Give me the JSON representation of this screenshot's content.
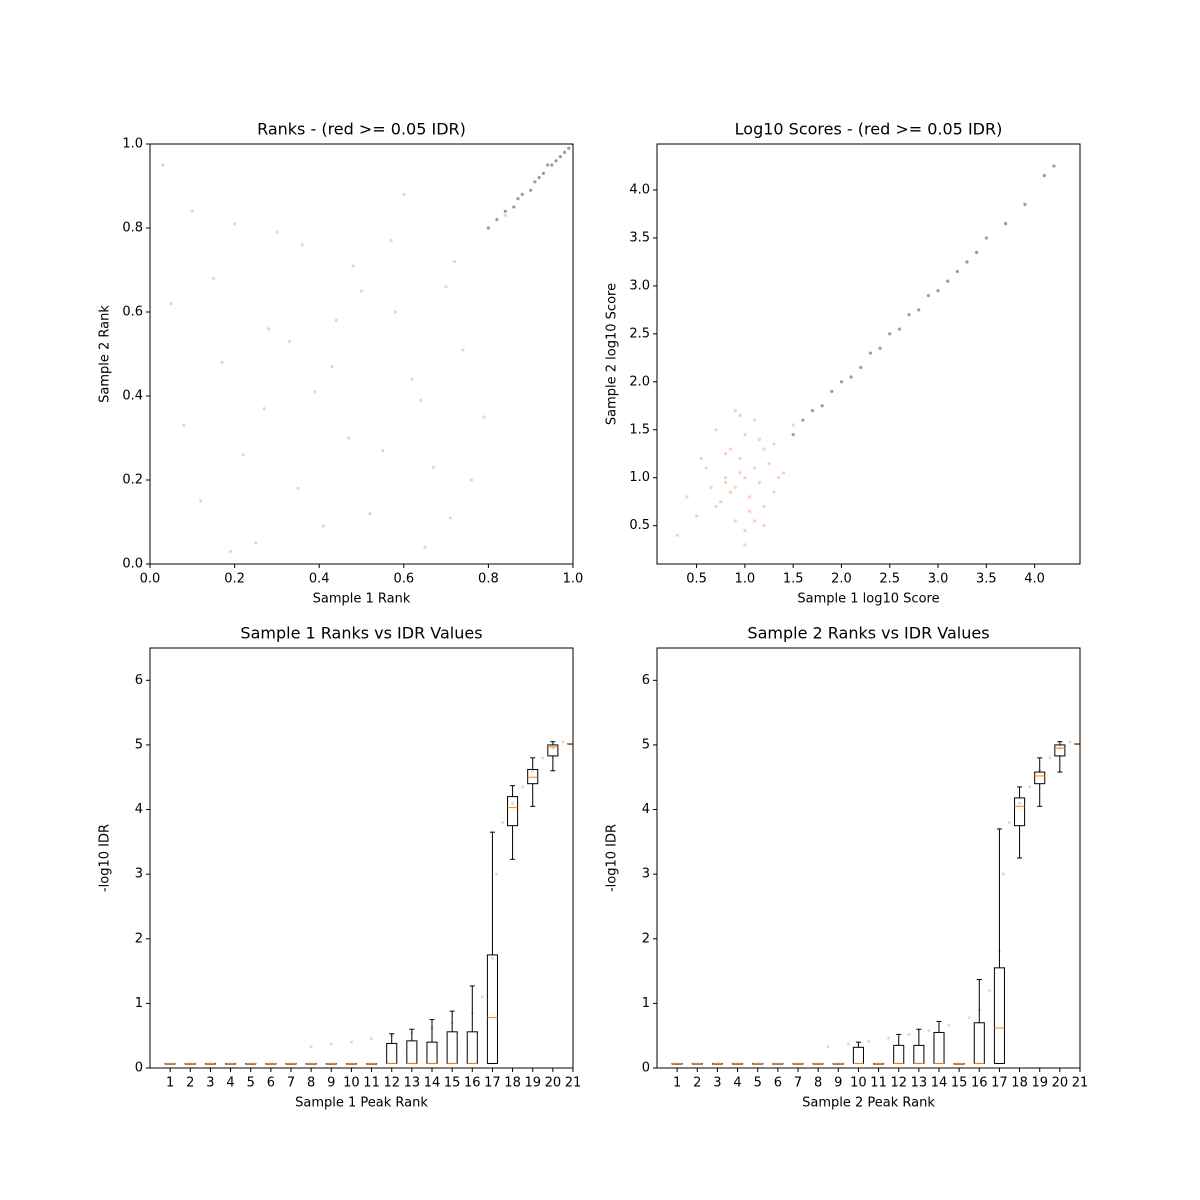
{
  "chart_data": [
    {
      "type": "scatter",
      "title": "Ranks - (red >= 0.05 IDR)",
      "xlabel": "Sample 1 Rank",
      "ylabel": "Sample 2 Rank",
      "xlim": [
        0,
        1
      ],
      "ylim": [
        0,
        1
      ],
      "xticks": [
        {
          "value": 0,
          "label": "0.0"
        },
        0.2,
        0.4,
        0.6,
        0.8,
        {
          "value": 1,
          "label": "1.0"
        }
      ],
      "yticks": [
        {
          "value": 0,
          "label": "0.0"
        },
        0.2,
        0.4,
        0.6,
        0.8,
        {
          "value": 1,
          "label": "1.0"
        }
      ],
      "series": [
        {
          "color": "#fc8d6b",
          "x": [
            0.05,
            0.12,
            0.2,
            0.27,
            0.33,
            0.41,
            0.48,
            0.55,
            0.62,
            0.7,
            0.76,
            0.08,
            0.17,
            0.25,
            0.36,
            0.44,
            0.52,
            0.6,
            0.67,
            0.74,
            0.03,
            0.15,
            0.22,
            0.3,
            0.39,
            0.47,
            0.58,
            0.65,
            0.72,
            0.79,
            0.1,
            0.19,
            0.28,
            0.35,
            0.43,
            0.5,
            0.57,
            0.64,
            0.71,
            0.84
          ],
          "values": [
            0.62,
            0.15,
            0.81,
            0.37,
            0.53,
            0.09,
            0.71,
            0.27,
            0.44,
            0.66,
            0.2,
            0.33,
            0.48,
            0.05,
            0.76,
            0.58,
            0.12,
            0.88,
            0.23,
            0.51,
            0.95,
            0.68,
            0.26,
            0.79,
            0.41,
            0.3,
            0.6,
            0.04,
            0.72,
            0.35,
            0.84,
            0.03,
            0.56,
            0.18,
            0.47,
            0.65,
            0.77,
            0.39,
            0.11,
            0.83
          ]
        },
        {
          "color": "#222222",
          "x": [
            0.8,
            0.82,
            0.84,
            0.86,
            0.87,
            0.88,
            0.9,
            0.91,
            0.92,
            0.93,
            0.94,
            0.95,
            0.96,
            0.97,
            0.98,
            0.99,
            1.0
          ],
          "values": [
            0.8,
            0.82,
            0.84,
            0.85,
            0.87,
            0.88,
            0.89,
            0.91,
            0.92,
            0.93,
            0.95,
            0.95,
            0.96,
            0.97,
            0.98,
            0.99,
            1.0
          ]
        }
      ]
    },
    {
      "type": "scatter",
      "title": "Log10 Scores - (red >= 0.05 IDR)",
      "xlabel": "Sample 1 log10 Score",
      "ylabel": "Sample 2 log10 Score",
      "xlim": [
        0.09,
        4.47
      ],
      "ylim": [
        0.1,
        4.48
      ],
      "xticks": [
        0.5,
        {
          "value": 1,
          "label": "1.0"
        },
        1.5,
        {
          "value": 2,
          "label": "2.0"
        },
        2.5,
        {
          "value": 3,
          "label": "3.0"
        },
        3.5,
        {
          "value": 4,
          "label": "4.0"
        }
      ],
      "yticks": [
        0.5,
        {
          "value": 1,
          "label": "1.0"
        },
        1.5,
        {
          "value": 2,
          "label": "2.0"
        },
        2.5,
        {
          "value": 3,
          "label": "3.0"
        },
        3.5,
        {
          "value": 4,
          "label": "4.0"
        }
      ],
      "series": [
        {
          "color": "#fc8d6b",
          "x": [
            0.4,
            0.6,
            0.7,
            0.8,
            0.85,
            0.9,
            0.95,
            1.0,
            1.05,
            1.1,
            1.15,
            1.2,
            1.3,
            1.4,
            0.5,
            0.75,
            0.9,
            1.0,
            1.1,
            1.25,
            0.65,
            0.8,
            0.95,
            1.05,
            1.2,
            1.35,
            0.55,
            0.85,
            1.0,
            1.15,
            0.7,
            0.9,
            1.1,
            1.3,
            1.5,
            0.3,
            1.0,
            0.95,
            1.2,
            0.8
          ],
          "values": [
            0.8,
            1.1,
            0.7,
            1.0,
            1.3,
            0.9,
            1.2,
            1.0,
            0.8,
            1.1,
            0.95,
            1.3,
            0.85,
            1.05,
            0.6,
            0.75,
            0.55,
            1.45,
            1.6,
            1.15,
            0.9,
            1.25,
            1.05,
            0.65,
            0.7,
            1.0,
            1.2,
            0.85,
            0.45,
            1.4,
            1.5,
            1.7,
            0.55,
            1.35,
            1.55,
            0.4,
            0.3,
            1.65,
            0.5,
            0.95
          ]
        },
        {
          "color": "#222222",
          "x": [
            1.5,
            1.6,
            1.7,
            1.8,
            1.9,
            2.0,
            2.1,
            2.2,
            2.3,
            2.4,
            2.5,
            2.6,
            2.7,
            2.8,
            2.9,
            3.0,
            3.1,
            3.2,
            3.3,
            3.4,
            3.5,
            3.7,
            3.9,
            4.1,
            4.2
          ],
          "values": [
            1.45,
            1.6,
            1.7,
            1.75,
            1.9,
            2.0,
            2.05,
            2.15,
            2.3,
            2.35,
            2.5,
            2.55,
            2.7,
            2.75,
            2.9,
            2.95,
            3.05,
            3.15,
            3.25,
            3.35,
            3.5,
            3.65,
            3.85,
            4.15,
            4.25
          ]
        }
      ]
    },
    {
      "type": "box",
      "title": "Sample 1 Ranks vs IDR Values",
      "xlabel": "Sample 1 Peak Rank",
      "ylabel": "-log10 IDR",
      "xlim": [
        0,
        21
      ],
      "ylim": [
        0,
        6.5
      ],
      "xticks": [
        1,
        2,
        3,
        4,
        5,
        6,
        7,
        8,
        9,
        10,
        11,
        12,
        13,
        14,
        15,
        16,
        17,
        18,
        19,
        20,
        21
      ],
      "yticks": [
        0,
        1,
        2,
        3,
        4,
        5,
        6
      ],
      "series": [
        {
          "color": "#999999",
          "x": [
            8,
            9,
            10,
            11,
            12,
            13,
            14,
            15,
            16,
            16.5,
            17,
            17.2,
            17.5,
            18,
            18.5,
            19,
            19.5,
            20,
            20.5
          ],
          "values": [
            0.33,
            0.37,
            0.4,
            0.45,
            0.5,
            0.55,
            0.62,
            0.7,
            0.85,
            1.1,
            1.7,
            3.0,
            3.8,
            4.1,
            4.35,
            4.6,
            4.8,
            4.95,
            5.05
          ]
        }
      ],
      "boxes": {
        "x": [
          1,
          2,
          3,
          4,
          5,
          6,
          7,
          8,
          9,
          10,
          11,
          12,
          13,
          14,
          15,
          16,
          17,
          18,
          19,
          20,
          21
        ],
        "low": [
          0.07,
          0.07,
          0.07,
          0.07,
          0.07,
          0.07,
          0.07,
          0.07,
          0.07,
          0.07,
          0.07,
          0.07,
          0.07,
          0.07,
          0.07,
          0.07,
          0.07,
          3.23,
          4.05,
          4.6,
          5.02
        ],
        "q1": [
          0.07,
          0.07,
          0.07,
          0.07,
          0.07,
          0.07,
          0.07,
          0.07,
          0.07,
          0.07,
          0.07,
          0.07,
          0.07,
          0.07,
          0.07,
          0.07,
          0.07,
          3.75,
          4.4,
          4.83,
          5.02
        ],
        "median": [
          0.07,
          0.07,
          0.07,
          0.07,
          0.07,
          0.07,
          0.07,
          0.07,
          0.07,
          0.07,
          0.07,
          0.07,
          0.07,
          0.07,
          0.07,
          0.07,
          0.78,
          4.03,
          4.5,
          4.97,
          5.02
        ],
        "q3": [
          0.07,
          0.07,
          0.07,
          0.07,
          0.07,
          0.07,
          0.07,
          0.07,
          0.07,
          0.07,
          0.07,
          0.38,
          0.42,
          0.4,
          0.56,
          0.56,
          1.75,
          4.2,
          4.62,
          5.0,
          5.02
        ],
        "high": [
          0.07,
          0.07,
          0.07,
          0.07,
          0.07,
          0.07,
          0.07,
          0.07,
          0.07,
          0.07,
          0.07,
          0.53,
          0.6,
          0.75,
          0.88,
          1.27,
          3.65,
          4.37,
          4.8,
          5.05,
          5.02
        ]
      }
    },
    {
      "type": "box",
      "title": "Sample 2 Ranks vs IDR Values",
      "xlabel": "Sample 2 Peak Rank",
      "ylabel": "-log10 IDR",
      "xlim": [
        0,
        21
      ],
      "ylim": [
        0,
        6.5
      ],
      "xticks": [
        1,
        2,
        3,
        4,
        5,
        6,
        7,
        8,
        9,
        10,
        11,
        12,
        13,
        14,
        15,
        16,
        17,
        18,
        19,
        20,
        21
      ],
      "yticks": [
        0,
        1,
        2,
        3,
        4,
        5,
        6
      ],
      "series": [
        {
          "color": "#999999",
          "x": [
            8.5,
            9.5,
            10.5,
            11.5,
            12.5,
            13.5,
            14.5,
            15.5,
            16,
            16.5,
            17,
            17.2,
            17.5,
            18,
            18.5,
            19,
            19.5,
            20,
            20.5
          ],
          "values": [
            0.33,
            0.37,
            0.41,
            0.46,
            0.52,
            0.58,
            0.66,
            0.78,
            0.9,
            1.2,
            1.8,
            3.0,
            3.8,
            4.1,
            4.35,
            4.6,
            4.8,
            4.95,
            5.05
          ]
        }
      ],
      "boxes": {
        "x": [
          1,
          2,
          3,
          4,
          5,
          6,
          7,
          8,
          9,
          10,
          11,
          12,
          13,
          14,
          15,
          16,
          17,
          18,
          19,
          20,
          21
        ],
        "low": [
          0.07,
          0.07,
          0.07,
          0.07,
          0.07,
          0.07,
          0.07,
          0.07,
          0.07,
          0.07,
          0.07,
          0.07,
          0.07,
          0.07,
          0.07,
          0.07,
          0.07,
          3.25,
          4.05,
          4.58,
          5.02
        ],
        "q1": [
          0.07,
          0.07,
          0.07,
          0.07,
          0.07,
          0.07,
          0.07,
          0.07,
          0.07,
          0.07,
          0.07,
          0.07,
          0.07,
          0.07,
          0.07,
          0.07,
          0.07,
          3.75,
          4.4,
          4.83,
          5.02
        ],
        "median": [
          0.07,
          0.07,
          0.07,
          0.07,
          0.07,
          0.07,
          0.07,
          0.07,
          0.07,
          0.07,
          0.07,
          0.07,
          0.07,
          0.07,
          0.07,
          0.07,
          0.62,
          4.05,
          4.52,
          4.95,
          5.02
        ],
        "q3": [
          0.07,
          0.07,
          0.07,
          0.07,
          0.07,
          0.07,
          0.07,
          0.07,
          0.07,
          0.32,
          0.07,
          0.35,
          0.35,
          0.55,
          0.07,
          0.7,
          1.55,
          4.18,
          4.58,
          5.0,
          5.02
        ],
        "high": [
          0.07,
          0.07,
          0.07,
          0.07,
          0.07,
          0.07,
          0.07,
          0.07,
          0.07,
          0.4,
          0.07,
          0.52,
          0.6,
          0.72,
          0.07,
          1.37,
          3.7,
          4.35,
          4.8,
          5.05,
          5.02
        ]
      }
    }
  ]
}
